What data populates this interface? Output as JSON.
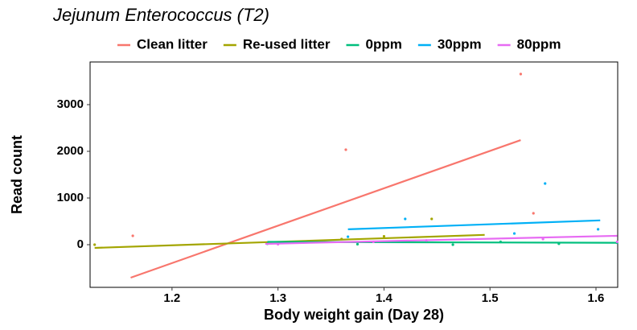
{
  "chart_data": {
    "type": "scatter",
    "title": "Jejunum Enterococcus (T2)",
    "x_label": "Body weight gain (Day 28)",
    "y_label": "Read count",
    "xlim": [
      1.1227,
      1.6205
    ],
    "ylim": [
      -914,
      3914
    ],
    "xticks": [
      1.2,
      1.3,
      1.4,
      1.5,
      1.6
    ],
    "yticks": [
      0,
      1000,
      2000,
      3000
    ],
    "grid": false,
    "series": [
      {
        "name": "Clean litter",
        "color": "#F8766D",
        "x": [
          1.163,
          1.364,
          1.529,
          1.541
        ],
        "values": [
          190,
          2034,
          3655,
          672
        ],
        "fit_x": [
          1.161,
          1.529
        ],
        "fit_values": [
          -707,
          2241
        ]
      },
      {
        "name": "Re-used litter",
        "color": "#A3A500",
        "x": [
          1.127,
          1.445,
          1.36,
          1.4
        ],
        "values": [
          0,
          552,
          120,
          180
        ],
        "fit_x": [
          1.127,
          1.495
        ],
        "fit_values": [
          -69,
          210
        ]
      },
      {
        "name": "0ppm",
        "color": "#00BF7D",
        "x": [
          1.29,
          1.375,
          1.465,
          1.51,
          1.565,
          1.62
        ],
        "values": [
          20,
          10,
          0,
          60,
          20,
          40
        ],
        "fit_x": [
          1.29,
          1.62
        ],
        "fit_values": [
          60,
          40
        ]
      },
      {
        "name": "30ppm",
        "color": "#00B0F6",
        "x": [
          1.366,
          1.42,
          1.523,
          1.552,
          1.602
        ],
        "values": [
          170,
          552,
          240,
          1310,
          330
        ],
        "fit_x": [
          1.366,
          1.604
        ],
        "fit_values": [
          330,
          520
        ]
      },
      {
        "name": "80ppm",
        "color": "#E76BF3",
        "x": [
          1.3,
          1.39,
          1.44,
          1.55,
          1.62
        ],
        "values": [
          10,
          60,
          90,
          120,
          60
        ],
        "fit_x": [
          1.288,
          1.62
        ],
        "fit_values": [
          17,
          190
        ]
      }
    ]
  }
}
